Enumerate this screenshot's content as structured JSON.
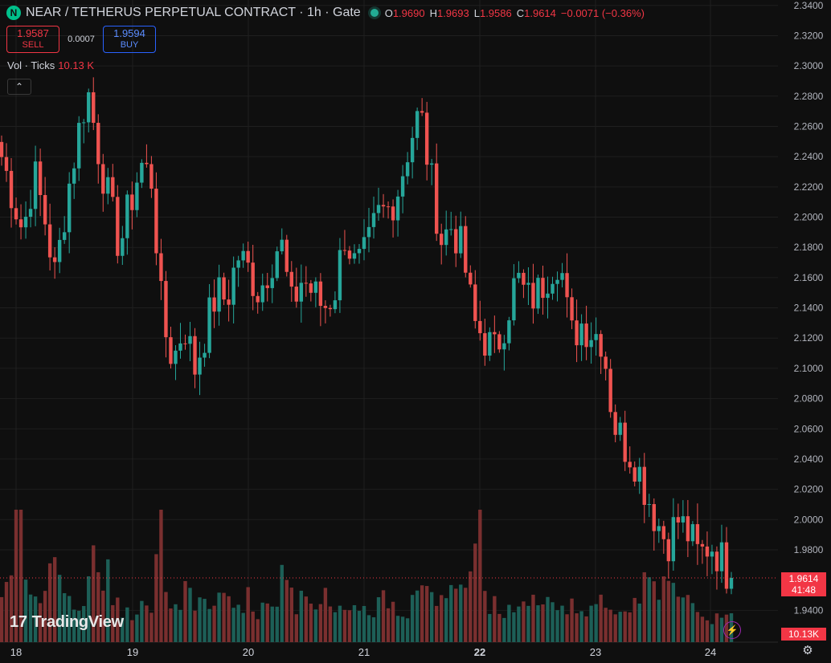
{
  "header": {
    "symbol_icon": "N",
    "title": "NEAR / TETHERUS PERPETUAL CONTRACT · 1h · Gate",
    "live_status_color": "#22ab94",
    "ohlc": {
      "o_label": "O",
      "o_value": "1.9690",
      "h_label": "H",
      "h_value": "1.9693",
      "l_label": "L",
      "l_value": "1.9586",
      "c_label": "C",
      "c_value": "1.9614",
      "change": "−0.0071 (−0.36%)"
    }
  },
  "trade": {
    "sell_price": "1.9587",
    "sell_label": "SELL",
    "spread": "0.0007",
    "buy_price": "1.9594",
    "buy_label": "BUY"
  },
  "volume_legend": {
    "label": "Vol · Ticks",
    "value": "10.13 K"
  },
  "collapse_icon": "chevron-up-icon",
  "branding": {
    "logo_mark": "17",
    "logo_text": "TradingView"
  },
  "price_tag": {
    "price": "1.9614",
    "countdown": "41:48"
  },
  "volume_tag": "10.13K",
  "colors": {
    "up": "#26a69a",
    "down": "#ef5350",
    "background": "#0f0f0f",
    "grid": "#1f1f1f",
    "price_line": "#f23645"
  },
  "chart_data": {
    "type": "candlestick",
    "y_axis_labels": [
      "2.3400",
      "2.3200",
      "2.3000",
      "2.2800",
      "2.2600",
      "2.2400",
      "2.2200",
      "2.2000",
      "2.1800",
      "2.1600",
      "2.1400",
      "2.1200",
      "2.1000",
      "2.0800",
      "2.0600",
      "2.0400",
      "2.0200",
      "2.0000",
      "1.9800",
      "1.9400"
    ],
    "y_range": [
      1.92,
      2.342
    ],
    "x_axis_labels": [
      "18",
      "19",
      "20",
      "21",
      "22",
      "23",
      "24"
    ],
    "bold_x_label": "22",
    "last_price": 1.9614,
    "series_anchor_close": [
      2.24,
      2.215,
      2.19,
      2.23,
      2.2,
      2.16,
      2.21,
      2.25,
      2.285,
      2.245,
      2.21,
      2.18,
      2.21,
      2.235,
      2.225,
      2.13,
      2.105,
      2.13,
      2.1,
      2.125,
      2.15,
      2.145,
      2.175,
      2.165,
      2.15,
      2.17,
      2.185,
      2.14,
      2.16,
      2.15,
      2.14,
      2.15,
      2.19,
      2.165,
      2.175,
      2.2,
      2.205,
      2.22,
      2.25,
      2.27,
      2.225,
      2.185,
      2.195,
      2.175,
      2.13,
      2.12,
      2.11,
      2.135,
      2.16,
      2.145,
      2.15,
      2.165,
      2.175,
      2.12,
      2.13,
      2.125,
      2.12,
      2.065,
      2.05,
      2.04,
      2.02,
      2.0,
      1.985,
      2.0,
      1.99,
      1.975,
      1.985,
      1.975,
      1.96
    ],
    "series_note": "",
    "volume_relative": [
      0.55,
      0.95,
      0.4,
      0.3,
      0.6,
      0.45,
      0.35,
      0.3,
      0.7,
      0.55,
      0.4,
      0.3,
      0.25,
      0.3,
      0.9,
      0.35,
      0.3,
      0.4,
      0.35,
      0.3,
      0.45,
      0.3,
      0.35,
      0.25,
      0.4,
      0.3,
      0.6,
      0.35,
      0.3,
      0.3,
      0.4,
      0.3,
      0.35,
      0.3,
      0.25,
      0.35,
      0.3,
      0.3,
      0.45,
      0.4,
      0.35,
      0.4,
      0.5,
      0.45,
      1.0,
      0.35,
      0.3,
      0.3,
      0.3,
      0.35,
      0.3,
      0.3,
      0.35,
      0.3,
      0.25,
      0.3,
      0.3,
      0.3,
      0.35,
      0.45,
      0.5,
      0.5,
      0.45,
      0.3,
      0.3,
      0.25,
      0.2,
      0.2,
      0.2
    ]
  }
}
